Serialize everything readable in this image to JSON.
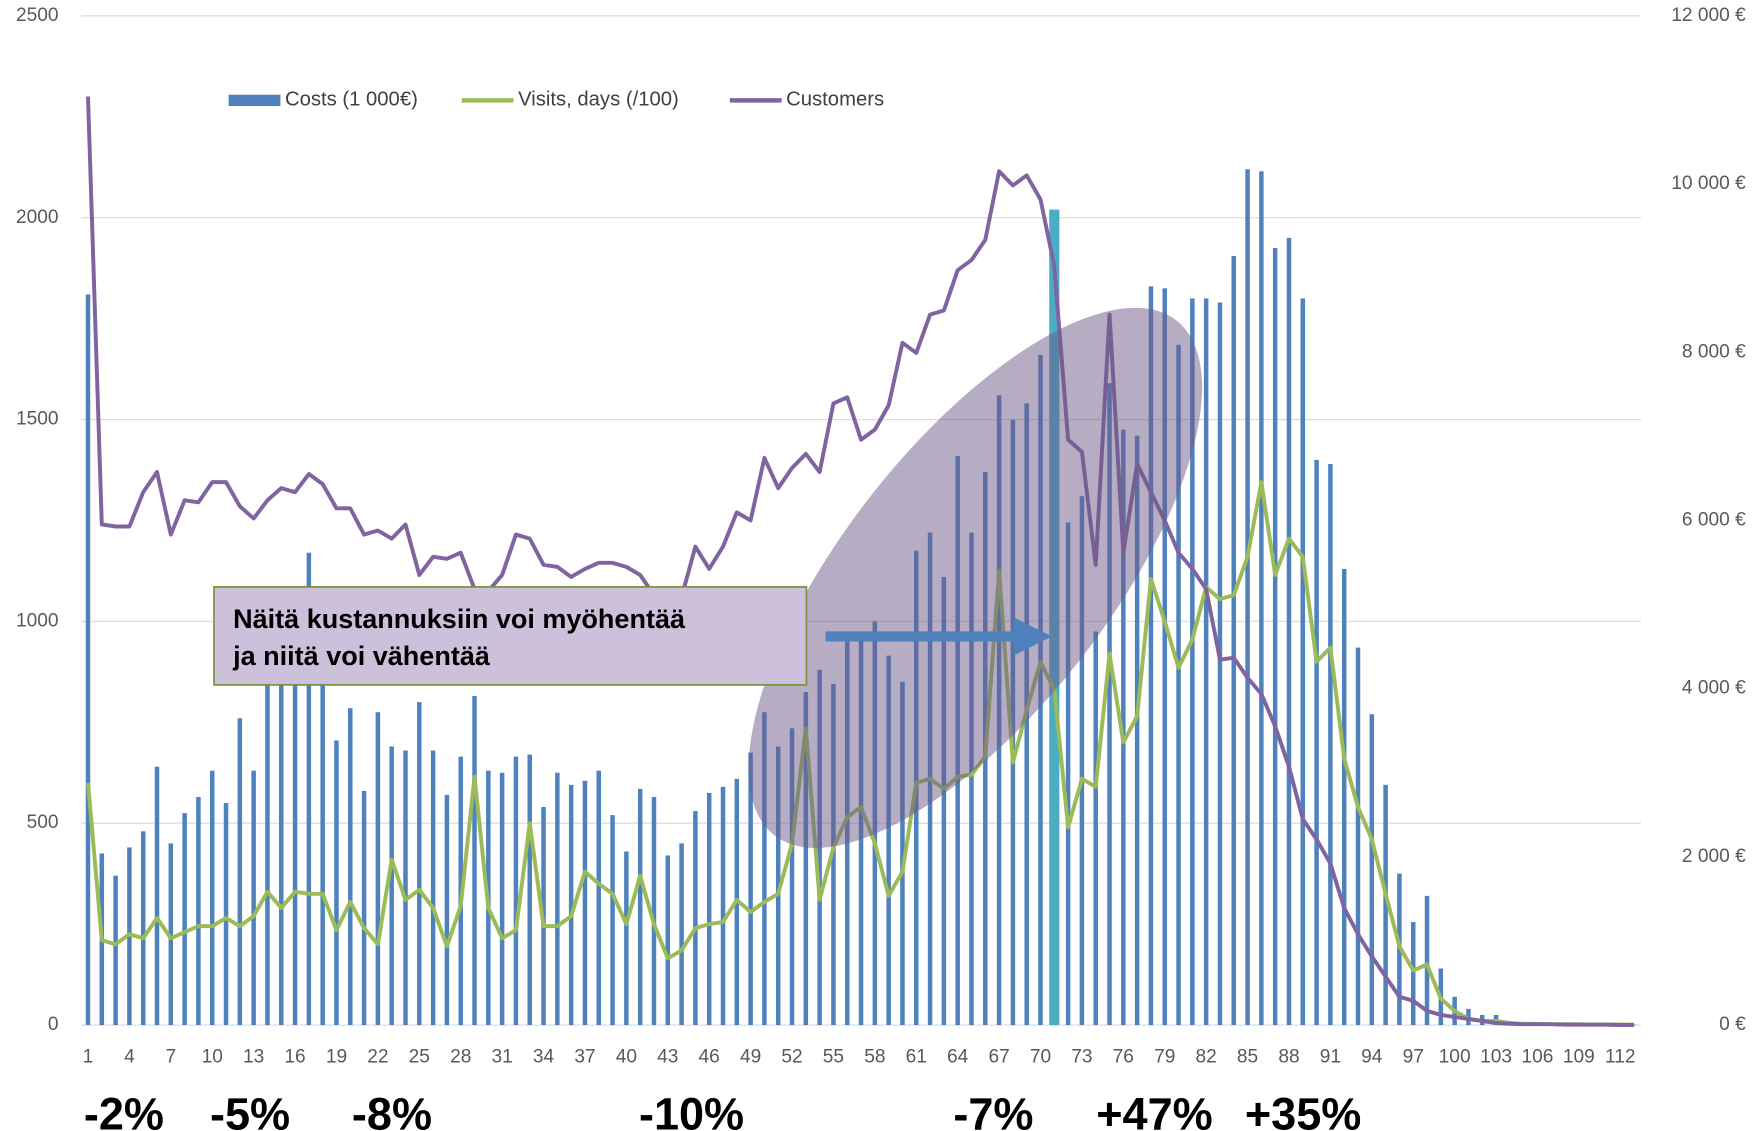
{
  "chart_data": {
    "type": "bar-line",
    "categories": [
      1,
      null,
      null,
      4,
      null,
      null,
      7,
      null,
      null,
      10,
      null,
      null,
      13,
      null,
      null,
      16,
      null,
      null,
      19,
      null,
      null,
      22,
      null,
      null,
      25,
      null,
      null,
      28,
      null,
      null,
      31,
      null,
      null,
      34,
      null,
      null,
      37,
      null,
      null,
      40,
      null,
      null,
      43,
      null,
      null,
      46,
      null,
      null,
      49,
      null,
      null,
      52,
      null,
      null,
      55,
      null,
      null,
      58,
      null,
      null,
      61,
      null,
      null,
      64,
      null,
      null,
      67,
      null,
      null,
      70,
      null,
      null,
      73,
      null,
      null,
      76,
      null,
      null,
      79,
      null,
      null,
      82,
      null,
      null,
      85,
      null,
      null,
      88,
      null,
      null,
      91,
      null,
      null,
      94,
      null,
      null,
      97,
      null,
      null,
      100,
      null,
      null,
      103,
      null,
      null,
      106,
      null,
      null,
      109,
      null,
      null,
      112,
      null
    ],
    "series": [
      {
        "name": "Costs (1 000€)",
        "kind": "bar",
        "color": "#4f81bd",
        "highlight_index": 70,
        "highlight_color": "#4bacc6",
        "values": [
          1810,
          425,
          370,
          440,
          480,
          640,
          450,
          525,
          565,
          630,
          550,
          760,
          630,
          860,
          880,
          900,
          1170,
          870,
          705,
          785,
          580,
          775,
          690,
          680,
          800,
          680,
          570,
          665,
          815,
          630,
          625,
          665,
          670,
          540,
          625,
          595,
          605,
          630,
          520,
          430,
          585,
          565,
          420,
          450,
          530,
          575,
          590,
          610,
          675,
          775,
          690,
          735,
          825,
          880,
          845,
          960,
          960,
          1000,
          915,
          850,
          1175,
          1220,
          1110,
          1410,
          1220,
          1370,
          1560,
          1500,
          1540,
          1660,
          2020,
          1245,
          1310,
          975,
          1590,
          1475,
          1460,
          1830,
          1825,
          1685,
          1800,
          1800,
          1790,
          1905,
          2120,
          2115,
          1925,
          1950,
          1800,
          1400,
          1390,
          1130,
          935,
          770,
          595,
          375,
          255,
          320,
          140,
          70,
          40,
          25,
          25,
          10,
          5,
          3,
          3,
          2,
          2,
          2,
          1,
          1,
          1
        ]
      },
      {
        "name": "Visits, days (/100)",
        "kind": "line",
        "color": "#9bbb59",
        "values": [
          600,
          210,
          200,
          225,
          215,
          265,
          215,
          230,
          245,
          245,
          265,
          245,
          270,
          330,
          290,
          330,
          325,
          325,
          235,
          305,
          240,
          200,
          410,
          310,
          335,
          290,
          195,
          295,
          615,
          290,
          215,
          235,
          500,
          245,
          245,
          270,
          380,
          350,
          325,
          250,
          370,
          250,
          165,
          185,
          240,
          250,
          255,
          310,
          280,
          305,
          325,
          450,
          735,
          310,
          440,
          515,
          540,
          450,
          320,
          380,
          600,
          610,
          585,
          615,
          620,
          665,
          1125,
          650,
          780,
          900,
          830,
          490,
          610,
          590,
          920,
          700,
          765,
          1105,
          1000,
          885,
          955,
          1085,
          1055,
          1065,
          1160,
          1345,
          1115,
          1205,
          1160,
          900,
          935,
          660,
          540,
          460,
          325,
          195,
          135,
          150,
          65,
          35,
          15,
          10,
          10,
          5,
          3,
          3,
          2,
          2,
          2,
          1,
          1,
          1,
          1
        ]
      },
      {
        "name": "Customers",
        "kind": "line",
        "color": "#8064a2",
        "values": [
          2300,
          1240,
          1235,
          1235,
          1320,
          1370,
          1215,
          1300,
          1295,
          1345,
          1345,
          1285,
          1255,
          1300,
          1330,
          1320,
          1365,
          1340,
          1280,
          1280,
          1215,
          1225,
          1205,
          1240,
          1115,
          1160,
          1155,
          1170,
          1080,
          1075,
          1115,
          1215,
          1205,
          1140,
          1135,
          1110,
          1130,
          1145,
          1145,
          1135,
          1115,
          1065,
          1060,
          1060,
          1185,
          1130,
          1185,
          1270,
          1250,
          1405,
          1330,
          1380,
          1415,
          1370,
          1540,
          1555,
          1450,
          1475,
          1535,
          1690,
          1665,
          1760,
          1770,
          1870,
          1895,
          1945,
          2115,
          2080,
          2105,
          2045,
          1880,
          1450,
          1420,
          1140,
          1760,
          1170,
          1390,
          1320,
          1250,
          1170,
          1130,
          1080,
          905,
          910,
          860,
          820,
          740,
          640,
          510,
          460,
          400,
          290,
          225,
          170,
          120,
          70,
          60,
          35,
          25,
          20,
          15,
          10,
          5,
          3,
          2,
          2,
          2,
          1,
          1,
          1,
          1,
          0,
          0
        ]
      }
    ],
    "ylim": [
      0,
      2500
    ],
    "yticks": [
      0,
      500,
      1000,
      1500,
      2000,
      2500
    ],
    "y2lim": [
      0,
      12000
    ],
    "y2ticks": [
      {
        "value": 0,
        "label": "0 €"
      },
      {
        "value": 2000,
        "label": "2 000 €"
      },
      {
        "value": 4000,
        "label": "4 000 €"
      },
      {
        "value": 6000,
        "label": "6 000 €"
      },
      {
        "value": 8000,
        "label": "8 000 €"
      },
      {
        "value": 10000,
        "label": "10 000 €"
      },
      {
        "value": 12000,
        "label": "12 000 €"
      }
    ],
    "grid": true,
    "legend": "top-left",
    "annotation": [
      "Näitä kustannuksiin voi myöhentää",
      "ja niitä voi vähentää"
    ],
    "period_labels": [
      "-2%",
      "-5%",
      "-8%",
      "-10%",
      "-7%",
      "+47%",
      "+35%"
    ]
  }
}
